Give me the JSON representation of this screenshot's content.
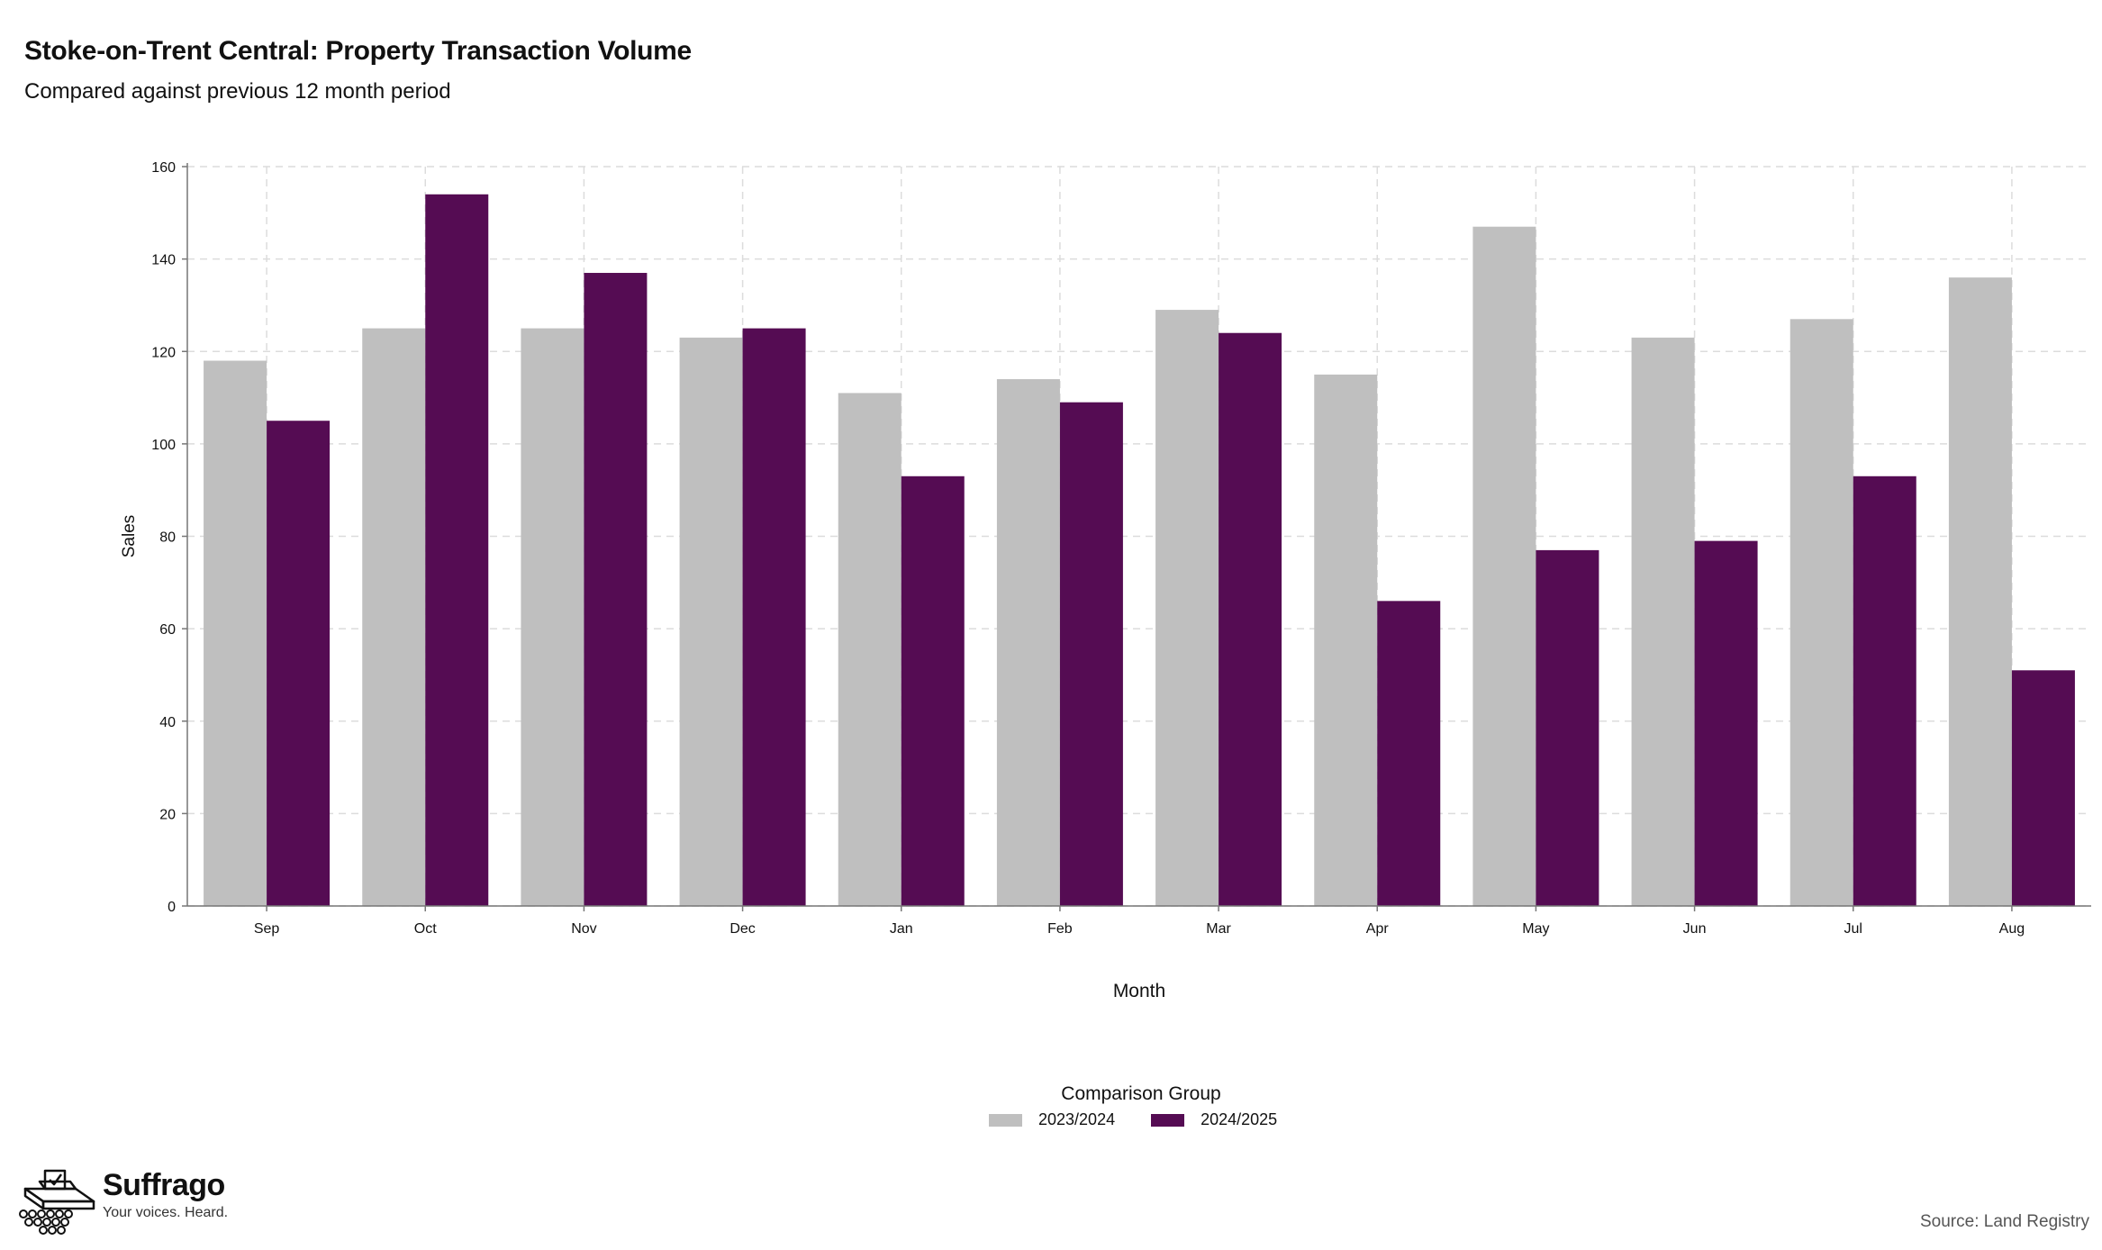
{
  "header": {
    "title": "Stoke-on-Trent Central: Property Transaction Volume",
    "subtitle": "Compared against previous 12 month period"
  },
  "legend": {
    "title": "Comparison Group",
    "items": [
      {
        "label": "2023/2024",
        "color": "#bfbfbf"
      },
      {
        "label": "2024/2025",
        "color": "#550c53"
      }
    ]
  },
  "branding": {
    "name": "Suffrago",
    "tagline": "Your voices. Heard.",
    "icon": "ballot-box-icon"
  },
  "footer": {
    "source": "Source: Land Registry"
  },
  "chart_data": {
    "type": "bar",
    "categories": [
      "Sep",
      "Oct",
      "Nov",
      "Dec",
      "Jan",
      "Feb",
      "Mar",
      "Apr",
      "May",
      "Jun",
      "Jul",
      "Aug"
    ],
    "series": [
      {
        "name": "2023/2024",
        "color": "#bfbfbf",
        "values": [
          118,
          125,
          125,
          123,
          111,
          114,
          129,
          115,
          147,
          123,
          127,
          136
        ]
      },
      {
        "name": "2024/2025",
        "color": "#550c53",
        "values": [
          105,
          154,
          137,
          125,
          93,
          109,
          124,
          66,
          77,
          79,
          93,
          51
        ]
      }
    ],
    "xlabel": "Month",
    "ylabel": "Sales",
    "ylim": [
      0,
      160
    ],
    "yticks": [
      0,
      20,
      40,
      60,
      80,
      100,
      120,
      140,
      160
    ],
    "grid": true,
    "legend_position": "bottom"
  }
}
